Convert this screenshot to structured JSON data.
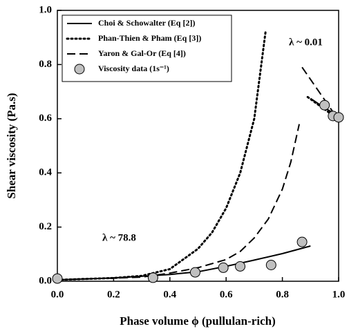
{
  "chart_data": {
    "type": "line",
    "xlabel": "Phase volume ϕ (pullulan-rich)",
    "ylabel": "Shear viscosity (Pa.s)",
    "xlim": [
      0,
      1.0
    ],
    "ylim": [
      0,
      1.0
    ],
    "xticks": [
      {
        "value": 0,
        "label": "0.0"
      },
      {
        "value": 0.2,
        "label": "0.2"
      },
      {
        "value": 0.4,
        "label": "0.4"
      },
      {
        "value": 0.6,
        "label": "0.6"
      },
      {
        "value": 0.8,
        "label": "0.8"
      },
      {
        "value": 1.0,
        "label": "1.0"
      }
    ],
    "yticks": [
      {
        "value": 0,
        "label": "0.0"
      },
      {
        "value": 0.2,
        "label": "0.2"
      },
      {
        "value": 0.4,
        "label": "0.4"
      },
      {
        "value": 0.6,
        "label": "0.6"
      },
      {
        "value": 0.8,
        "label": "0.8"
      },
      {
        "value": 1.0,
        "label": "1.0"
      }
    ],
    "legend": "upper left",
    "annotations": [
      "λ ~ 0.01",
      "λ ~ 78.8"
    ],
    "series": [
      {
        "name": "Choi & Schowalter (Eq [2])",
        "color": "#000000",
        "style": "solid",
        "x": [
          0,
          0.2,
          0.4,
          0.5,
          0.6,
          0.7,
          0.8,
          0.9,
          null,
          0.9,
          0.95,
          1.0
        ],
        "values": [
          0.005,
          0.012,
          0.025,
          0.035,
          0.055,
          0.078,
          0.102,
          0.13,
          null,
          0.675,
          0.64,
          0.61
        ]
      },
      {
        "name": "Phan-Thien & Pham (Eq [3])",
        "color": "#000000",
        "style": "dotted",
        "x": [
          0,
          0.2,
          0.3,
          0.4,
          0.5,
          0.55,
          0.6,
          0.65,
          0.7,
          0.74,
          null,
          0.89,
          0.93,
          0.97
        ],
        "values": [
          0.005,
          0.012,
          0.02,
          0.045,
          0.12,
          0.18,
          0.27,
          0.4,
          0.6,
          0.92,
          null,
          0.68,
          0.65,
          0.62
        ]
      },
      {
        "name": "Yaron & Gal-Or (Eq [4])",
        "color": "#000000",
        "style": "dashed",
        "x": [
          0,
          0.3,
          0.4,
          0.5,
          0.6,
          0.65,
          0.7,
          0.75,
          0.8,
          0.83,
          0.86,
          null,
          0.87,
          0.93,
          0.99
        ],
        "values": [
          0.005,
          0.015,
          0.03,
          0.05,
          0.08,
          0.11,
          0.16,
          0.23,
          0.34,
          0.44,
          0.58,
          null,
          0.79,
          0.7,
          0.61
        ]
      },
      {
        "name": "Viscosity data (1s⁻¹)",
        "color": "#c0c0c0",
        "style": "marker",
        "x": [
          0,
          0.34,
          0.49,
          0.59,
          0.65,
          0.76,
          0.87,
          0.95,
          0.98,
          1.0
        ],
        "values": [
          0.01,
          0.013,
          0.033,
          0.05,
          0.055,
          0.06,
          0.145,
          0.65,
          0.61,
          0.605
        ]
      }
    ]
  }
}
